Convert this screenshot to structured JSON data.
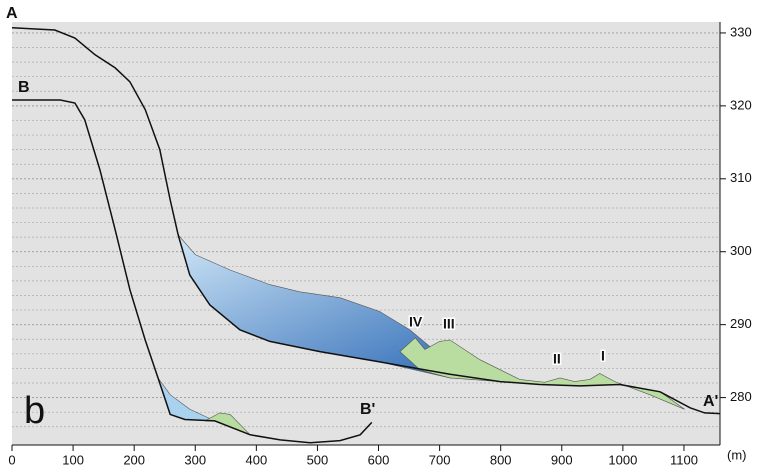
{
  "chart_data": {
    "type": "line",
    "xlim": [
      0,
      1159
    ],
    "xticks": [
      0,
      100,
      200,
      300,
      400,
      500,
      600,
      700,
      800,
      900,
      1000,
      1100
    ],
    "x_unit": "(m)",
    "ylim": [
      273.5,
      331.5
    ],
    "yticks": [
      280,
      290,
      300,
      310,
      320,
      330
    ],
    "y_minor_ticks": [
      276,
      278,
      282,
      284,
      286,
      288,
      292,
      294,
      296,
      298,
      302,
      304,
      306,
      308,
      312,
      314,
      316,
      318,
      322,
      324,
      326,
      328
    ],
    "grid": true,
    "panel_label": "b",
    "series": [
      {
        "name": "A",
        "end_label": "A'",
        "color": "#111111",
        "x": [
          0,
          70,
          103,
          136,
          169,
          193,
          218,
          242,
          259,
          272,
          291,
          324,
          373,
          422,
          504,
          602,
          717,
          799,
          864,
          930,
          995,
          1061,
          1110,
          1134,
          1159
        ],
        "values": [
          330.7,
          330.4,
          329.3,
          327.0,
          325.2,
          323.3,
          319.5,
          314.0,
          307.1,
          302.3,
          296.8,
          292.7,
          289.3,
          287.7,
          286.3,
          284.9,
          283.2,
          282.2,
          281.8,
          281.6,
          281.8,
          280.8,
          278.6,
          277.9,
          277.8
        ]
      },
      {
        "name": "B",
        "end_label": "B'",
        "color": "#111111",
        "x": [
          0,
          79,
          103,
          119,
          144,
          169,
          193,
          218,
          239,
          259,
          283,
          332,
          390,
          439,
          488,
          537,
          570,
          589
        ],
        "values": [
          320.8,
          320.8,
          320.4,
          318.1,
          311.2,
          303.0,
          294.8,
          287.9,
          282.7,
          277.7,
          277.0,
          276.8,
          274.9,
          274.2,
          273.8,
          274.1,
          274.9,
          276.6
        ]
      }
    ],
    "areas": [
      {
        "color": "#1f5fb0",
        "x": [
          272,
          300,
          357,
          422,
          471,
          537,
          602,
          651,
          700,
          766,
          831,
          717,
          602,
          504,
          422,
          373,
          324,
          291
        ],
        "values": [
          302.3,
          299.6,
          297.5,
          295.5,
          294.5,
          293.7,
          291.8,
          289.3,
          285.9,
          283.2,
          282.1,
          282.7,
          284.9,
          286.3,
          287.7,
          289.3,
          292.7,
          296.8
        ]
      },
      {
        "color": "#b9dca0",
        "x": [
          635,
          660,
          676,
          700,
          717,
          766,
          831,
          872,
          897,
          921,
          946,
          962,
          987,
          1044,
          1101,
          1061,
          995,
          930,
          864,
          799,
          717,
          668
        ],
        "values": [
          286.3,
          288.2,
          286.6,
          287.7,
          287.9,
          285.2,
          282.5,
          282.1,
          282.7,
          282.2,
          282.5,
          283.3,
          282.2,
          280.4,
          278.4,
          280.8,
          281.8,
          281.6,
          281.8,
          282.2,
          282.7,
          283.8
        ]
      },
      {
        "color": "#a9d2ee",
        "x": [
          239,
          259,
          283,
          332,
          291,
          259
        ],
        "values": [
          282.7,
          277.7,
          277.0,
          276.8,
          278.4,
          280.4
        ]
      },
      {
        "color": "#b9dca0",
        "x": [
          316,
          340,
          357,
          390,
          332
        ],
        "values": [
          276.8,
          277.9,
          277.7,
          274.9,
          276.8
        ]
      }
    ],
    "annotations": [
      "IV",
      "III",
      "II",
      "I"
    ]
  }
}
